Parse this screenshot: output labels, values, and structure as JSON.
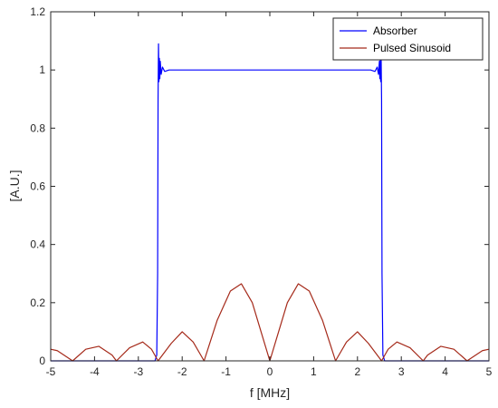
{
  "chart_data": {
    "type": "line",
    "xlabel": "f [MHz]",
    "ylabel": "[A.U.]",
    "xlim": [
      -5,
      5
    ],
    "ylim": [
      0,
      1.2
    ],
    "xticks": [
      "-5",
      "-4",
      "-3",
      "-2",
      "-1",
      "0",
      "1",
      "2",
      "3",
      "4",
      "5"
    ],
    "yticks": [
      "0",
      "0.2",
      "0.4",
      "0.6",
      "0.8",
      "1",
      "1.2"
    ],
    "grid": false,
    "legend_position": "top-right",
    "series": [
      {
        "name": "Absorber",
        "color": "#0000ff",
        "x": [
          -5,
          -2.62,
          -2.58,
          -2.56,
          -2.55,
          -2.54,
          -2.53,
          -2.52,
          -2.51,
          -2.5,
          -2.48,
          -2.45,
          -2.4,
          -2.3,
          0,
          2.3,
          2.4,
          2.45,
          2.48,
          2.5,
          2.51,
          2.52,
          2.53,
          2.54,
          2.55,
          2.56,
          2.58,
          2.62,
          5
        ],
        "y": [
          0,
          0,
          0.02,
          0.3,
          0.9,
          1.09,
          0.96,
          1.04,
          0.97,
          1.03,
          0.985,
          1.01,
          0.995,
          1.0,
          1.0,
          1.0,
          0.995,
          1.01,
          0.985,
          1.03,
          0.97,
          1.04,
          0.96,
          1.04,
          0.9,
          0.3,
          0.02,
          0,
          0
        ]
      },
      {
        "name": "Pulsed Sinusoid",
        "color": "#a52a1a",
        "x": [
          -5,
          -4.85,
          -4.5,
          -4.2,
          -3.9,
          -3.6,
          -3.5,
          -3.2,
          -2.9,
          -2.7,
          -2.55,
          -2.25,
          -2.0,
          -1.75,
          -1.5,
          -1.2,
          -0.9,
          -0.65,
          -0.4,
          -0.2,
          0,
          0.2,
          0.4,
          0.65,
          0.9,
          1.2,
          1.5,
          1.75,
          2.0,
          2.25,
          2.55,
          2.7,
          2.9,
          3.2,
          3.5,
          3.6,
          3.9,
          4.2,
          4.5,
          4.85,
          5
        ],
        "y": [
          0.04,
          0.035,
          0,
          0.04,
          0.05,
          0.02,
          0,
          0.045,
          0.065,
          0.04,
          0,
          0.06,
          0.1,
          0.065,
          0,
          0.14,
          0.24,
          0.265,
          0.2,
          0.1,
          0,
          0.1,
          0.2,
          0.265,
          0.24,
          0.14,
          0,
          0.065,
          0.1,
          0.06,
          0,
          0.04,
          0.065,
          0.045,
          0,
          0.02,
          0.05,
          0.04,
          0,
          0.035,
          0.04
        ]
      }
    ]
  }
}
